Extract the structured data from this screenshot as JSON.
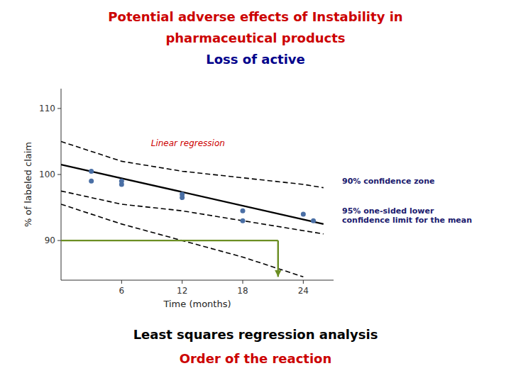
{
  "chart_data": {
    "type": "scatter",
    "title": {
      "lines": [
        "Potential adverse effects of Instability in",
        "pharmaceutical products"
      ],
      "color": "#cc0000"
    },
    "subtitle": {
      "text": "Loss of active",
      "color": "#00008B"
    },
    "x_label": "Time (months)",
    "y_label": "% of labeled claim",
    "xlim": [
      0,
      27
    ],
    "ylim": [
      84,
      113
    ],
    "xticks": [
      6,
      12,
      18,
      24
    ],
    "yticks": [
      90,
      100,
      110
    ],
    "grid": false,
    "series": [
      {
        "type": "scatter",
        "marker": "circle",
        "color": "#4a6fa5",
        "x": [
          3,
          3,
          6,
          6,
          12,
          12,
          18,
          18,
          24,
          25
        ],
        "values": [
          99.0,
          100.5,
          98.5,
          99.0,
          96.5,
          97.0,
          94.5,
          93.0,
          94.0,
          93.0
        ]
      },
      {
        "type": "line",
        "line_style": "solid",
        "color": "#000000",
        "x": [
          0,
          26
        ],
        "values": [
          101.5,
          92.5
        ]
      },
      {
        "type": "line",
        "line_style": "dashed",
        "color": "#000000",
        "x": [
          0,
          6,
          12,
          18,
          24,
          26
        ],
        "values": [
          105.0,
          102.0,
          100.5,
          99.5,
          98.5,
          98.0
        ]
      },
      {
        "type": "line",
        "line_style": "dashed",
        "color": "#000000",
        "x": [
          0,
          6,
          12,
          18,
          24,
          26
        ],
        "values": [
          97.5,
          95.5,
          94.5,
          93.0,
          91.5,
          91.0
        ]
      },
      {
        "type": "line",
        "line_style": "dashed",
        "color": "#000000",
        "x": [
          0,
          6,
          12,
          18,
          22,
          24
        ],
        "values": [
          95.5,
          92.5,
          90.0,
          87.5,
          85.5,
          84.5
        ]
      },
      {
        "type": "line",
        "line_style": "solid",
        "color": "#6b8e23",
        "x": [
          0,
          21.5
        ],
        "values": [
          90.0,
          90.0
        ]
      },
      {
        "type": "arrow",
        "line_style": "solid",
        "color": "#6b8e23",
        "x": [
          21.5,
          21.5
        ],
        "values": [
          90.0,
          84.5
        ]
      }
    ],
    "annotations": [
      {
        "text": "Linear regression",
        "color": "#cc0000"
      },
      {
        "text": "90% confidence zone",
        "color": "#1a1a6e"
      },
      {
        "text": "95% one-sided lower\nconfidence limit for the mean",
        "color": "#1a1a6e"
      }
    ],
    "footnotes": [
      {
        "text": "Least squares regression analysis",
        "color": "#000000"
      },
      {
        "text": "Order of the reaction",
        "color": "#cc0000"
      }
    ]
  }
}
